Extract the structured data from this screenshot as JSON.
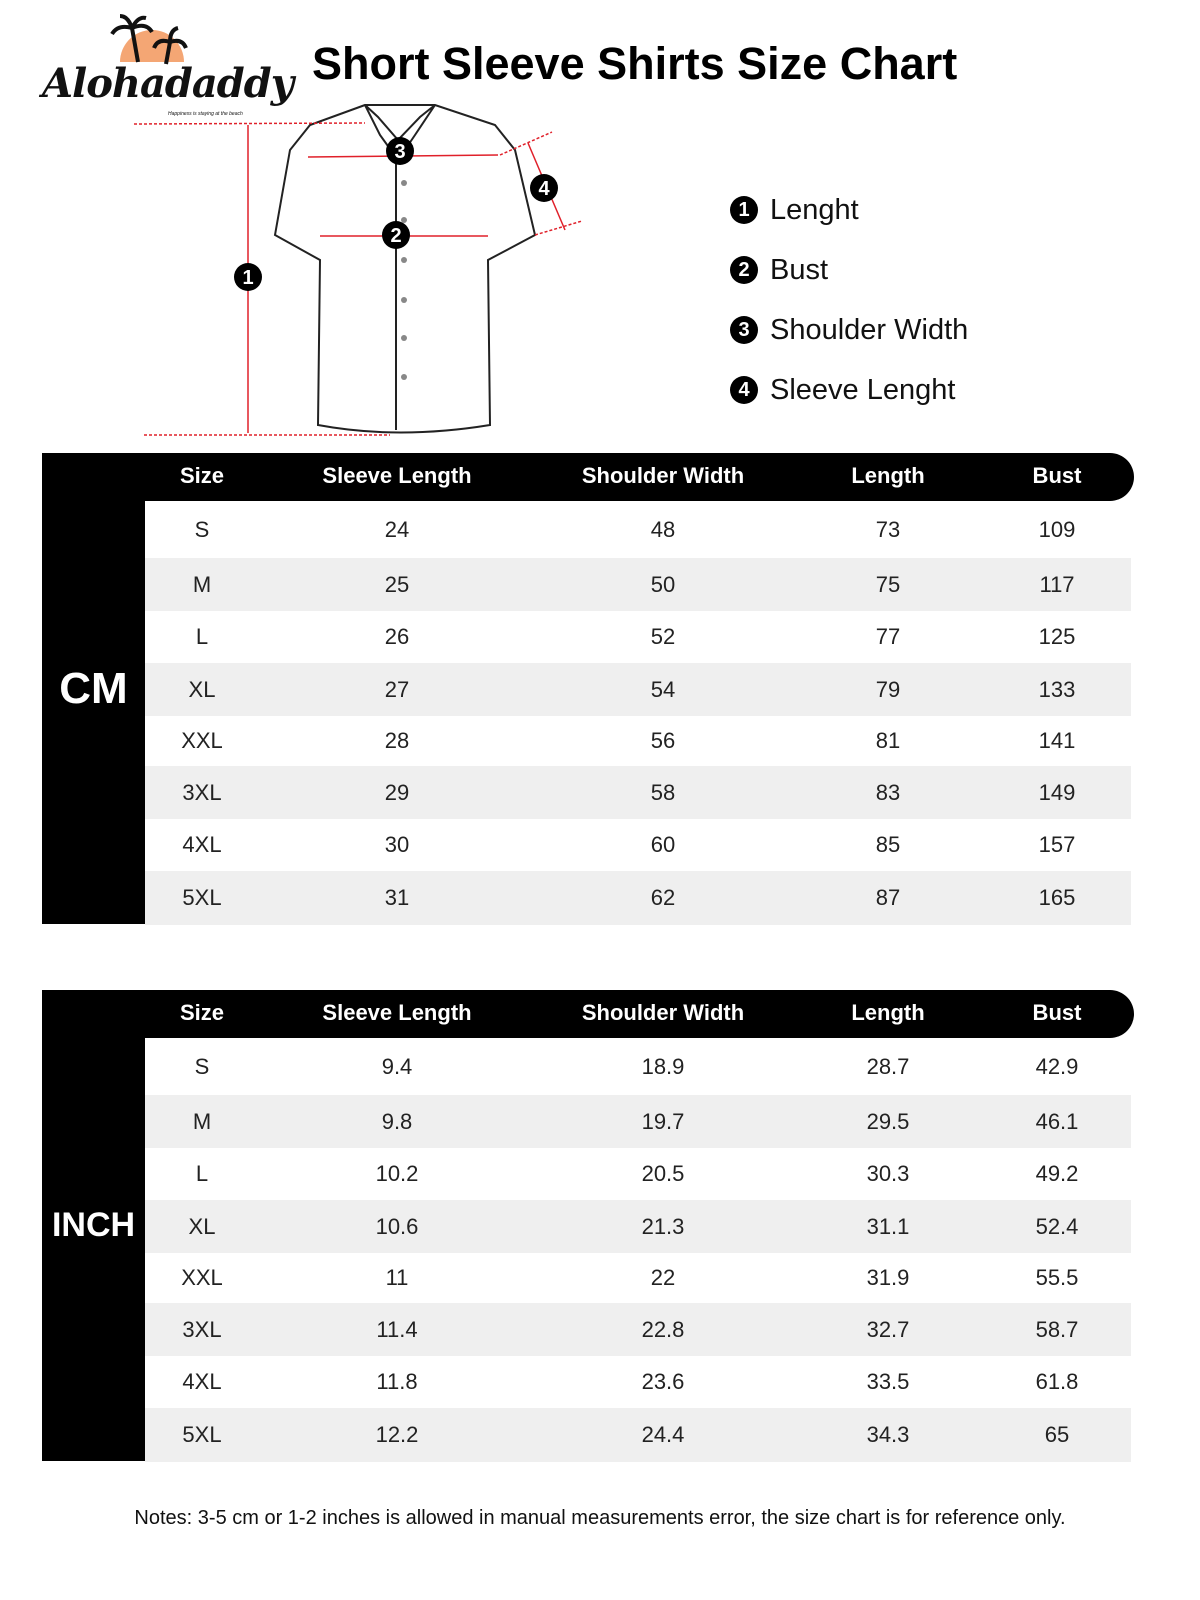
{
  "brand": {
    "name": "Alohadaddy",
    "tagline": "Happiness is staying at the beach",
    "colors": {
      "sun": "#f4a674"
    }
  },
  "title": "Short Sleeve Shirts Size Chart",
  "legend": [
    {
      "num": "1",
      "label": "Lenght"
    },
    {
      "num": "2",
      "label": "Bust"
    },
    {
      "num": "3",
      "label": "Shoulder Width"
    },
    {
      "num": "4",
      "label": "Sleeve Lenght"
    }
  ],
  "columns": [
    "Size",
    "Sleeve Length",
    "Shoulder Width",
    "Length",
    "Bust"
  ],
  "tables": [
    {
      "unit": "CM",
      "rows": [
        [
          "S",
          "24",
          "48",
          "73",
          "109"
        ],
        [
          "M",
          "25",
          "50",
          "75",
          "117"
        ],
        [
          "L",
          "26",
          "52",
          "77",
          "125"
        ],
        [
          "XL",
          "27",
          "54",
          "79",
          "133"
        ],
        [
          "XXL",
          "28",
          "56",
          "81",
          "141"
        ],
        [
          "3XL",
          "29",
          "58",
          "83",
          "149"
        ],
        [
          "4XL",
          "30",
          "60",
          "85",
          "157"
        ],
        [
          "5XL",
          "31",
          "62",
          "87",
          "165"
        ]
      ]
    },
    {
      "unit": "INCH",
      "rows": [
        [
          "S",
          "9.4",
          "18.9",
          "28.7",
          "42.9"
        ],
        [
          "M",
          "9.8",
          "19.7",
          "29.5",
          "46.1"
        ],
        [
          "L",
          "10.2",
          "20.5",
          "30.3",
          "49.2"
        ],
        [
          "XL",
          "10.6",
          "21.3",
          "31.1",
          "52.4"
        ],
        [
          "XXL",
          "11",
          "22",
          "31.9",
          "55.5"
        ],
        [
          "3XL",
          "11.4",
          "22.8",
          "32.7",
          "58.7"
        ],
        [
          "4XL",
          "11.8",
          "23.6",
          "33.5",
          "61.8"
        ],
        [
          "5XL",
          "12.2",
          "24.4",
          "34.3",
          "65"
        ]
      ]
    }
  ],
  "note": "Notes: 3-5 cm or 1-2 inches is allowed in manual measurements error, the size chart is for reference only."
}
